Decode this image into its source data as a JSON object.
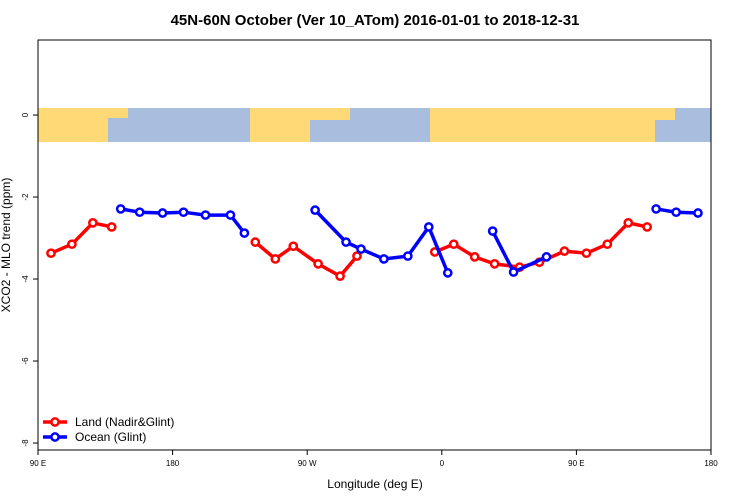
{
  "chart_data": {
    "type": "line",
    "title": "45N-60N October (Ver 10_ATom)   2016-01-01 to 2018-12-31",
    "x_label": "Longitude (deg E)",
    "y_label": "XCO2 - MLO trend (ppm)",
    "xlim": [
      90,
      540
    ],
    "xticks": [
      {
        "value": 90,
        "label": "90 E"
      },
      180,
      {
        "value": 270,
        "label": "90 W"
      },
      {
        "value": 360,
        "label": "0"
      },
      {
        "value": 450,
        "label": "90 E"
      },
      {
        "value": 540,
        "label": "180"
      }
    ],
    "ylim": [
      -8.17,
      1.83
    ],
    "yticks": [
      0,
      -2,
      -4,
      -6,
      -8
    ],
    "legend": "bottom-left",
    "series": [
      {
        "name": "Land (Nadir&Glint)",
        "color": "#ff0000",
        "x": [
          98.7,
          112.7,
          126.7,
          139.3,
          null,
          235.3,
          248.7,
          260.7,
          277.3,
          292,
          303.3,
          null,
          355.3,
          368,
          382,
          395.3,
          412,
          425.3,
          442,
          456.7,
          470.7,
          484.7,
          497.3
        ],
        "values": [
          -3.37,
          -3.15,
          -2.63,
          -2.73,
          null,
          -3.1,
          -3.51,
          -3.2,
          -3.63,
          -3.93,
          -3.44,
          null,
          -3.34,
          -3.15,
          -3.46,
          -3.63,
          -3.71,
          -3.59,
          -3.32,
          -3.37,
          -3.15,
          -2.63,
          -2.73
        ]
      },
      {
        "name": "Ocean (Glint)",
        "color": "#0000ff",
        "x": [
          145.3,
          158,
          173.3,
          187.3,
          202,
          218.7,
          228,
          null,
          275.3,
          296,
          306,
          321.3,
          337.3,
          351.3,
          364,
          null,
          394,
          408,
          430,
          null,
          503.3,
          516.7,
          531.3
        ],
        "values": [
          -2.29,
          -2.37,
          -2.39,
          -2.37,
          -2.44,
          -2.44,
          -2.88,
          null,
          -2.32,
          -3.1,
          -3.27,
          -3.51,
          -3.44,
          -2.73,
          -3.85,
          null,
          -2.83,
          -3.83,
          -3.46,
          null,
          -2.29,
          -2.37,
          -2.39
        ]
      }
    ]
  }
}
